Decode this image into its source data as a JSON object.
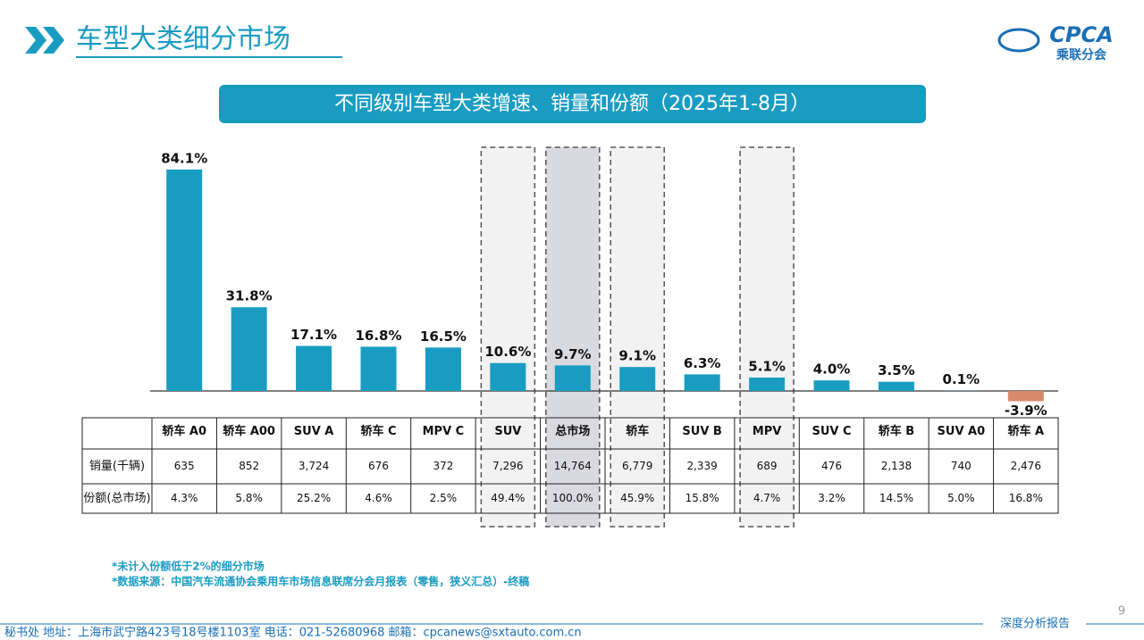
{
  "header": {
    "title": "车型大类细分市场",
    "logo": "CPCA",
    "logo_subtitle": "乘联分会"
  },
  "chart_data": {
    "type": "bar",
    "title": "不同级别车型大类增速、销量和份额（2025年1-8月）",
    "categories": [
      "轿车 A0",
      "轿车 A00",
      "SUV A",
      "轿车 C",
      "MPV C",
      "SUV",
      "总市场",
      "轿车",
      "SUV B",
      "MPV",
      "SUV C",
      "轿车 B",
      "SUV A0",
      "轿车 A"
    ],
    "values": [
      84.1,
      31.8,
      17.1,
      16.8,
      16.5,
      10.6,
      9.7,
      9.1,
      6.3,
      5.1,
      4.0,
      3.5,
      0.1,
      -3.9
    ],
    "value_labels": [
      "84.1%",
      "31.8%",
      "17.1%",
      "16.8%",
      "16.5%",
      "10.6%",
      "9.7%",
      "9.1%",
      "6.3%",
      "5.1%",
      "4.0%",
      "3.5%",
      "0.1%",
      "-3.9%"
    ],
    "color": "#1a9cc2",
    "negative_color": "#d9896b",
    "highlight_indices": [
      5,
      6,
      7,
      9
    ],
    "shaded_index": 6
  },
  "table": {
    "rows": [
      {
        "label": "销量(千辆)",
        "cells": [
          "635",
          "852",
          "3,724",
          "676",
          "372",
          "7,296",
          "14,764",
          "6,779",
          "2,339",
          "689",
          "476",
          "2,138",
          "740",
          "2,476"
        ]
      },
      {
        "label": "份额(总市场)",
        "cells": [
          "4.3%",
          "5.8%",
          "25.2%",
          "4.6%",
          "2.5%",
          "49.4%",
          "100.0%",
          "45.9%",
          "15.8%",
          "4.7%",
          "3.2%",
          "14.5%",
          "5.0%",
          "16.8%"
        ]
      }
    ]
  },
  "notes": [
    "*未计入份额低于2%的细分市场",
    "*数据来源：中国汽车流通协会乘用车市场信息联席分会月报表（零售，狭义汇总）-终稿"
  ],
  "footer": {
    "address": "秘书处   地址：上海市武宁路423号18号楼1103室  电话：021-52680968   邮箱：cpcanews@sxtauto.com.cn",
    "tagline": "深度分析报告",
    "page": "9"
  }
}
